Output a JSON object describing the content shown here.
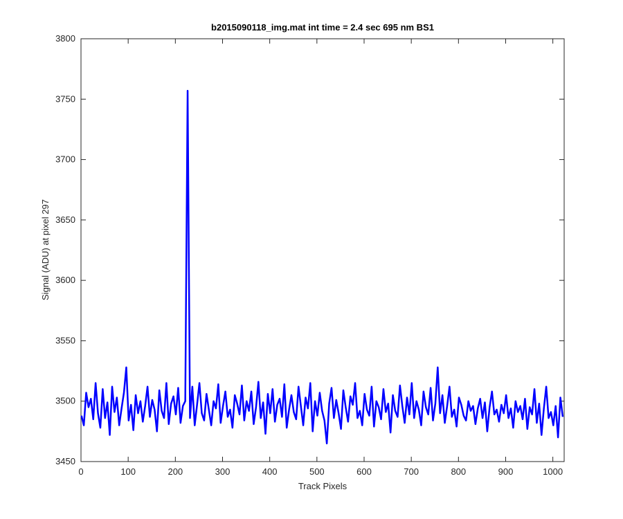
{
  "chart_data": {
    "type": "line",
    "title": "b2015090118_img.mat int time = 2.4 sec  695 nm BS1",
    "xlabel": "Track Pixels",
    "ylabel": "Signal (ADU) at pixel 297",
    "xlim": [
      0,
      1024
    ],
    "ylim": [
      3450,
      3800
    ],
    "xticks": [
      0,
      100,
      200,
      300,
      400,
      500,
      600,
      700,
      800,
      900,
      1000
    ],
    "yticks": [
      3450,
      3500,
      3550,
      3600,
      3650,
      3700,
      3750,
      3800
    ],
    "grid": false,
    "x": [
      1,
      6,
      11,
      16,
      21,
      26,
      31,
      36,
      41,
      46,
      51,
      56,
      61,
      66,
      71,
      76,
      81,
      86,
      91,
      96,
      101,
      106,
      111,
      116,
      121,
      126,
      131,
      136,
      141,
      146,
      151,
      156,
      161,
      166,
      171,
      176,
      181,
      186,
      191,
      196,
      201,
      206,
      211,
      216,
      221,
      226,
      231,
      236,
      241,
      246,
      251,
      256,
      261,
      266,
      271,
      276,
      281,
      286,
      291,
      296,
      301,
      306,
      311,
      316,
      321,
      326,
      331,
      336,
      341,
      346,
      351,
      356,
      361,
      366,
      371,
      376,
      381,
      386,
      391,
      396,
      401,
      406,
      411,
      416,
      421,
      426,
      431,
      436,
      441,
      446,
      451,
      456,
      461,
      466,
      471,
      476,
      481,
      486,
      491,
      496,
      501,
      506,
      511,
      516,
      521,
      526,
      531,
      536,
      541,
      546,
      551,
      556,
      561,
      566,
      571,
      576,
      581,
      586,
      591,
      596,
      601,
      606,
      611,
      616,
      621,
      626,
      631,
      636,
      641,
      646,
      651,
      656,
      661,
      666,
      671,
      676,
      681,
      686,
      691,
      696,
      701,
      706,
      711,
      716,
      721,
      726,
      731,
      736,
      741,
      746,
      751,
      756,
      761,
      766,
      771,
      776,
      781,
      786,
      791,
      796,
      801,
      806,
      811,
      816,
      821,
      826,
      831,
      836,
      841,
      846,
      851,
      856,
      861,
      866,
      871,
      876,
      881,
      886,
      891,
      896,
      901,
      906,
      911,
      916,
      921,
      926,
      931,
      936,
      941,
      946,
      951,
      956,
      961,
      966,
      971,
      976,
      981,
      986,
      991,
      996,
      1001,
      1006,
      1011,
      1016,
      1021
    ],
    "series": [
      {
        "color": "#0000ff",
        "values": [
          3488,
          3480,
          3507,
          3495,
          3502,
          3485,
          3515,
          3490,
          3478,
          3510,
          3486,
          3499,
          3472,
          3512,
          3491,
          3503,
          3480,
          3494,
          3507,
          3528,
          3484,
          3497,
          3476,
          3505,
          3490,
          3500,
          3483,
          3496,
          3512,
          3487,
          3501,
          3493,
          3475,
          3509,
          3492,
          3486,
          3515,
          3481,
          3498,
          3504,
          3489,
          3511,
          3482,
          3496,
          3500,
          3757,
          3486,
          3512,
          3480,
          3497,
          3515,
          3490,
          3484,
          3506,
          3493,
          3480,
          3500,
          3494,
          3514,
          3482,
          3496,
          3508,
          3487,
          3493,
          3478,
          3505,
          3498,
          3489,
          3513,
          3484,
          3500,
          3492,
          3508,
          3481,
          3495,
          3516,
          3486,
          3499,
          3473,
          3506,
          3490,
          3510,
          3483,
          3497,
          3502,
          3487,
          3514,
          3478,
          3493,
          3505,
          3491,
          3485,
          3512,
          3496,
          3480,
          3503,
          3494,
          3515,
          3475,
          3500,
          3488,
          3507,
          3492,
          3484,
          3465,
          3498,
          3511,
          3486,
          3501,
          3490,
          3477,
          3509,
          3495,
          3483,
          3504,
          3497,
          3515,
          3486,
          3492,
          3480,
          3506,
          3493,
          3488,
          3512,
          3479,
          3500,
          3495,
          3485,
          3510,
          3491,
          3498,
          3474,
          3505,
          3492,
          3487,
          3513,
          3496,
          3482,
          3503,
          3489,
          3515,
          3486,
          3500,
          3493,
          3480,
          3508,
          3495,
          3489,
          3511,
          3484,
          3498,
          3528,
          3490,
          3505,
          3482,
          3496,
          3512,
          3487,
          3493,
          3479,
          3503,
          3497,
          3488,
          3484,
          3500,
          3492,
          3496,
          3481,
          3494,
          3502,
          3486,
          3499,
          3475,
          3495,
          3508,
          3489,
          3493,
          3483,
          3497,
          3490,
          3505,
          3486,
          3494,
          3478,
          3500,
          3491,
          3496,
          3485,
          3502,
          3477,
          3495,
          3489,
          3510,
          3482,
          3498,
          3472,
          3494,
          3512,
          3486,
          3491,
          3480,
          3496,
          3470,
          3503,
          3487
        ]
      }
    ]
  }
}
